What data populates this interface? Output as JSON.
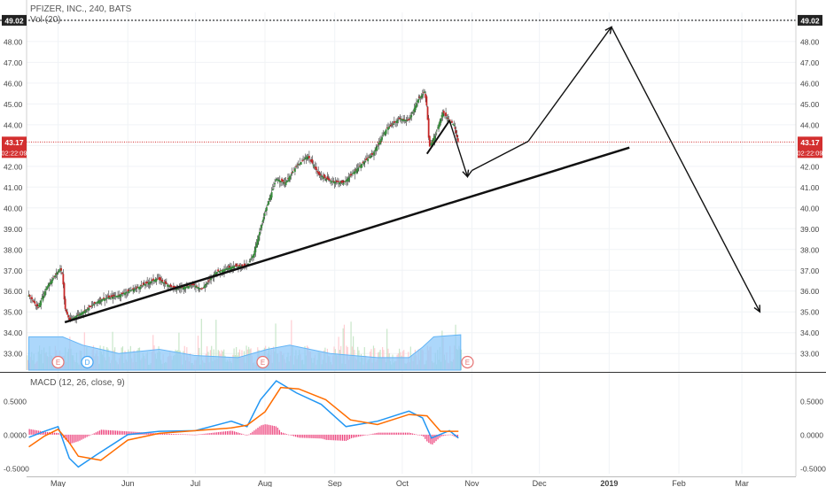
{
  "chart_data": [
    {
      "type": "candlestick",
      "title": "PFIZER, INC., 240, BATS",
      "ylim": [
        32.2,
        49.4
      ],
      "y_ticks": [
        "33.00",
        "34.00",
        "35.00",
        "36.00",
        "37.00",
        "38.00",
        "39.00",
        "40.00",
        "41.00",
        "42.00",
        "43.00",
        "44.00",
        "45.00",
        "46.00",
        "47.00",
        "48.00",
        "49.00"
      ],
      "x_labels": [
        "May",
        "Jun",
        "Jul",
        "Aug",
        "Sep",
        "Oct",
        "Nov",
        "Dec",
        "2019",
        "Feb",
        "Mar"
      ],
      "x_labels_bold": [
        "2019"
      ],
      "price_path": [
        [
          "2018-04-18",
          35.8
        ],
        [
          "2018-04-22",
          35.2
        ],
        [
          "2018-04-26",
          36.2
        ],
        [
          "2018-04-30",
          36.8
        ],
        [
          "2018-05-02",
          37.1
        ],
        [
          "2018-05-03",
          36.8
        ],
        [
          "2018-05-04",
          35.2
        ],
        [
          "2018-05-06",
          34.6
        ],
        [
          "2018-05-12",
          35.0
        ],
        [
          "2018-05-20",
          35.6
        ],
        [
          "2018-05-28",
          35.8
        ],
        [
          "2018-06-06",
          36.2
        ],
        [
          "2018-06-14",
          36.6
        ],
        [
          "2018-06-22",
          36.1
        ],
        [
          "2018-06-30",
          36.3
        ],
        [
          "2018-07-04",
          36.1
        ],
        [
          "2018-07-10",
          36.9
        ],
        [
          "2018-07-18",
          37.2
        ],
        [
          "2018-07-24",
          37.2
        ],
        [
          "2018-07-27",
          37.8
        ],
        [
          "2018-08-01",
          39.8
        ],
        [
          "2018-08-06",
          41.4
        ],
        [
          "2018-08-10",
          41.2
        ],
        [
          "2018-08-15",
          42.0
        ],
        [
          "2018-08-20",
          42.5
        ],
        [
          "2018-08-25",
          41.6
        ],
        [
          "2018-08-30",
          41.3
        ],
        [
          "2018-09-05",
          41.2
        ],
        [
          "2018-09-12",
          42.0
        ],
        [
          "2018-09-18",
          42.6
        ],
        [
          "2018-09-24",
          43.8
        ],
        [
          "2018-09-30",
          44.3
        ],
        [
          "2018-10-04",
          44.2
        ],
        [
          "2018-10-08",
          45.2
        ],
        [
          "2018-10-11",
          45.6
        ],
        [
          "2018-10-12",
          44.8
        ],
        [
          "2018-10-13",
          42.9
        ],
        [
          "2018-10-16",
          43.6
        ],
        [
          "2018-10-19",
          44.6
        ],
        [
          "2018-10-22",
          44.2
        ],
        [
          "2018-10-24",
          44.0
        ],
        [
          "2018-10-26",
          43.1
        ]
      ],
      "volume_ma": [
        [
          "2018-04-18",
          33.8
        ],
        [
          "2018-05-03",
          33.8
        ],
        [
          "2018-05-12",
          33.4
        ],
        [
          "2018-05-28",
          33.0
        ],
        [
          "2018-06-15",
          33.2
        ],
        [
          "2018-07-01",
          32.9
        ],
        [
          "2018-07-20",
          32.8
        ],
        [
          "2018-08-02",
          33.2
        ],
        [
          "2018-08-12",
          33.4
        ],
        [
          "2018-08-30",
          33.0
        ],
        [
          "2018-09-20",
          32.8
        ],
        [
          "2018-10-04",
          32.8
        ],
        [
          "2018-10-10",
          33.3
        ],
        [
          "2018-10-15",
          33.8
        ],
        [
          "2018-10-27",
          33.9
        ]
      ],
      "earnings_markers": [
        {
          "date": "2018-05-01",
          "label": "E",
          "color": "#e57373"
        },
        {
          "date": "2018-05-14",
          "label": "D",
          "color": "#42a5f5"
        },
        {
          "date": "2018-07-31",
          "label": "E",
          "color": "#e57373"
        },
        {
          "date": "2018-10-30",
          "label": "E",
          "color": "#e57373"
        }
      ],
      "annotations": {
        "top_line": {
          "value": 49.02,
          "label": "49.02"
        },
        "price_line": {
          "value": 43.17,
          "label": "43.17",
          "countdown": "02:22:09"
        },
        "trendline_support": [
          [
            "2018-05-04",
            34.5
          ],
          [
            "2019-01-10",
            42.9
          ]
        ],
        "trendline_short": [
          [
            "2018-10-12",
            42.6
          ],
          [
            "2018-10-22",
            44.2
          ]
        ],
        "projected_path": [
          [
            "2018-10-22",
            44.2
          ],
          [
            "2018-10-30",
            41.5
          ],
          [
            "2018-11-01",
            41.8
          ],
          [
            "2018-11-26",
            43.2
          ],
          [
            "2019-01-02",
            48.7
          ],
          [
            "2019-03-09",
            35.0
          ]
        ]
      }
    },
    {
      "type": "line",
      "title": "MACD (12, 26, close, 9)",
      "ylim": [
        -0.58,
        0.88
      ],
      "y_ticks": [
        "-0.5000",
        "0.0000",
        "0.5000"
      ],
      "series": [
        {
          "color": "#2196f3",
          "values": [
            [
              "2018-04-18",
              -0.04
            ],
            [
              "2018-04-25",
              0.05
            ],
            [
              "2018-05-01",
              0.12
            ],
            [
              "2018-05-06",
              -0.35
            ],
            [
              "2018-05-10",
              -0.48
            ],
            [
              "2018-05-18",
              -0.3
            ],
            [
              "2018-06-01",
              0.0
            ],
            [
              "2018-06-15",
              0.05
            ],
            [
              "2018-07-01",
              0.06
            ],
            [
              "2018-07-17",
              0.2
            ],
            [
              "2018-07-24",
              0.12
            ],
            [
              "2018-07-30",
              0.52
            ],
            [
              "2018-08-06",
              0.8
            ],
            [
              "2018-08-15",
              0.62
            ],
            [
              "2018-08-26",
              0.45
            ],
            [
              "2018-09-06",
              0.12
            ],
            [
              "2018-09-20",
              0.2
            ],
            [
              "2018-10-04",
              0.35
            ],
            [
              "2018-10-10",
              0.25
            ],
            [
              "2018-10-14",
              -0.05
            ],
            [
              "2018-10-22",
              0.06
            ],
            [
              "2018-10-26",
              -0.05
            ]
          ]
        },
        {
          "color": "#ff6d00",
          "values": [
            [
              "2018-04-18",
              -0.18
            ],
            [
              "2018-04-25",
              -0.02
            ],
            [
              "2018-05-01",
              0.08
            ],
            [
              "2018-05-06",
              -0.12
            ],
            [
              "2018-05-10",
              -0.32
            ],
            [
              "2018-05-20",
              -0.38
            ],
            [
              "2018-06-01",
              -0.08
            ],
            [
              "2018-06-15",
              0.02
            ],
            [
              "2018-07-01",
              0.06
            ],
            [
              "2018-07-17",
              0.1
            ],
            [
              "2018-07-24",
              0.14
            ],
            [
              "2018-08-01",
              0.34
            ],
            [
              "2018-08-08",
              0.7
            ],
            [
              "2018-08-16",
              0.68
            ],
            [
              "2018-08-28",
              0.52
            ],
            [
              "2018-09-08",
              0.22
            ],
            [
              "2018-09-20",
              0.15
            ],
            [
              "2018-10-04",
              0.3
            ],
            [
              "2018-10-12",
              0.28
            ],
            [
              "2018-10-18",
              0.05
            ],
            [
              "2018-10-26",
              0.05
            ]
          ]
        }
      ]
    }
  ]
}
